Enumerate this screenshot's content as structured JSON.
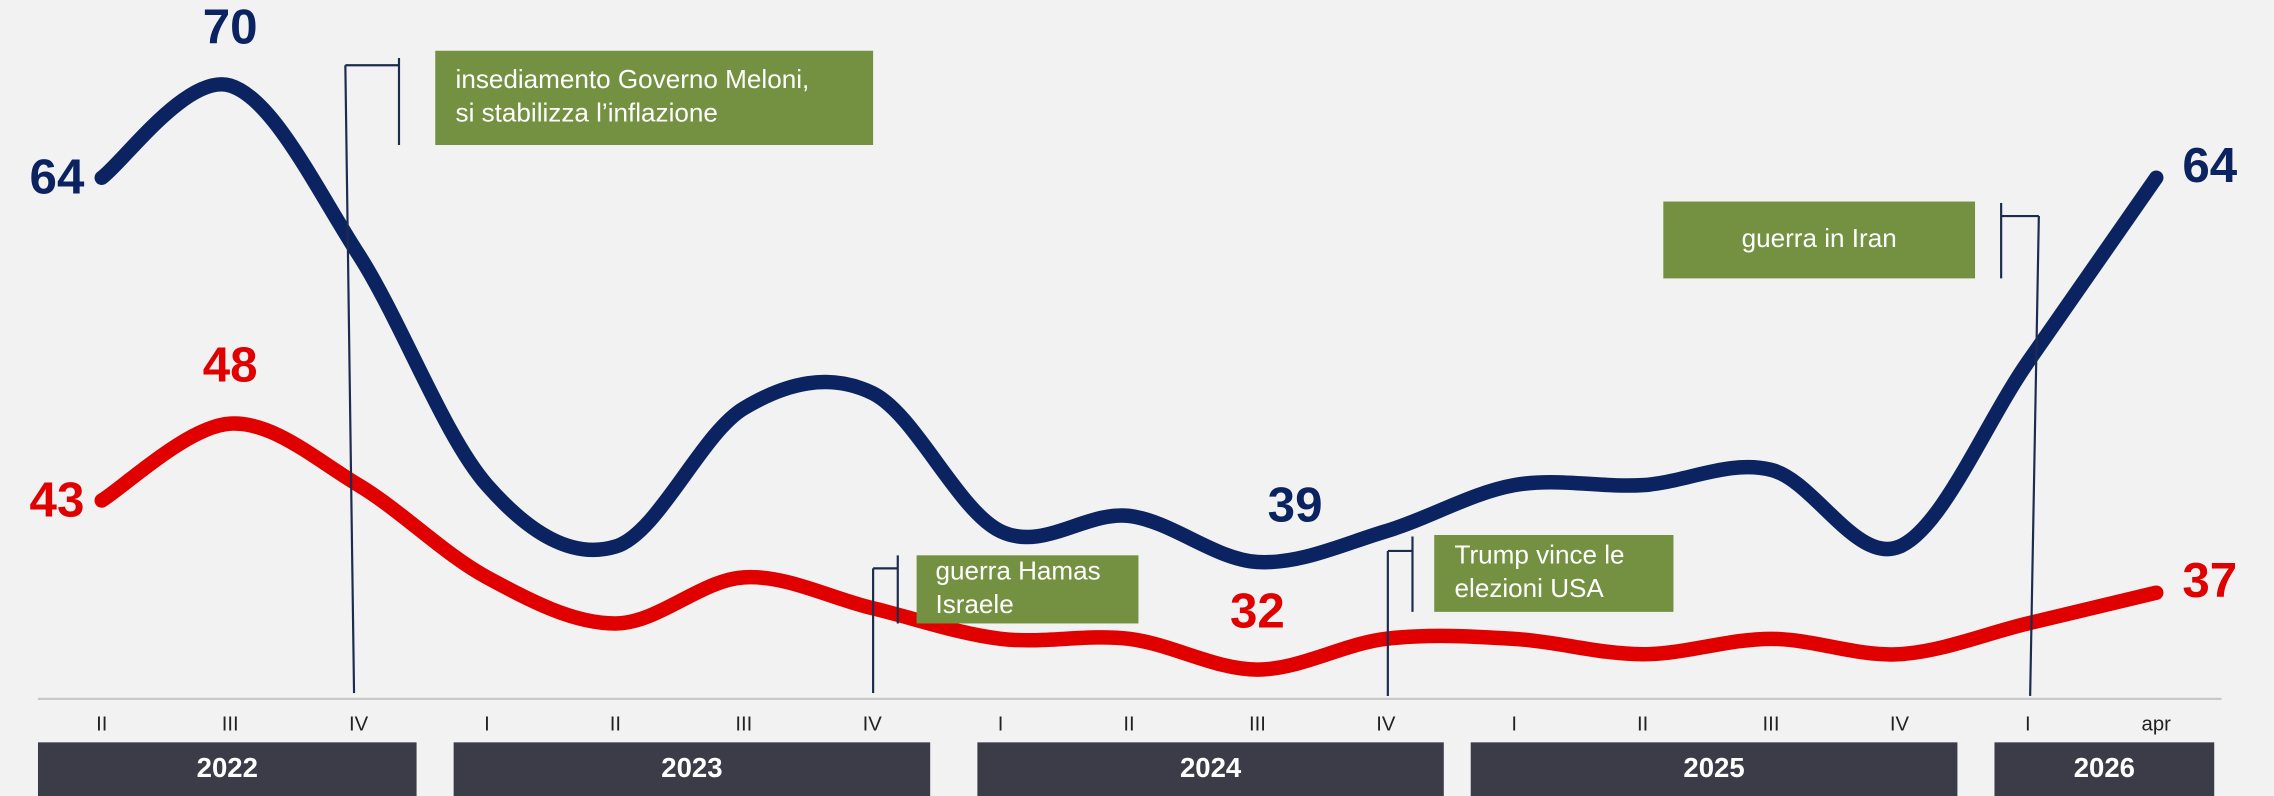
{
  "chart_data": {
    "type": "line",
    "category_groups": [
      {
        "name": "2022",
        "categories": [
          "II",
          "III",
          "IV"
        ]
      },
      {
        "name": "2023",
        "categories": [
          "I",
          "II",
          "III",
          "IV"
        ]
      },
      {
        "name": "2024",
        "categories": [
          "I",
          "II",
          "III",
          "IV"
        ]
      },
      {
        "name": "2025",
        "categories": [
          "I",
          "II",
          "III",
          "IV"
        ]
      },
      {
        "name": "2026",
        "categories": [
          "I",
          "apr"
        ]
      }
    ],
    "series": [
      {
        "color": "#0b2461",
        "values": [
          64,
          70,
          59,
          44,
          40,
          49,
          50,
          41,
          42,
          39,
          41,
          44,
          44,
          45,
          40,
          52,
          64
        ],
        "labeled_points": [
          0,
          1,
          9,
          16
        ]
      },
      {
        "color": "#e00000",
        "values": [
          43,
          48,
          44,
          38,
          35,
          38,
          36,
          34,
          34,
          32,
          34,
          34,
          33,
          34,
          33,
          35,
          37
        ],
        "labeled_points": [
          0,
          1,
          9,
          16
        ]
      }
    ],
    "annotations": [
      {
        "text": [
          "insediamento Governo Meloni,",
          "si stabilizza l’inflazione"
        ],
        "color": "#739140"
      },
      {
        "text": [
          "guerra Hamas",
          "Israele"
        ],
        "color": "#739140"
      },
      {
        "text": [
          "Trump vince le",
          "elezioni USA"
        ],
        "color": "#739140"
      },
      {
        "text": [
          "guerra in Iran"
        ],
        "color": "#739140"
      }
    ]
  }
}
